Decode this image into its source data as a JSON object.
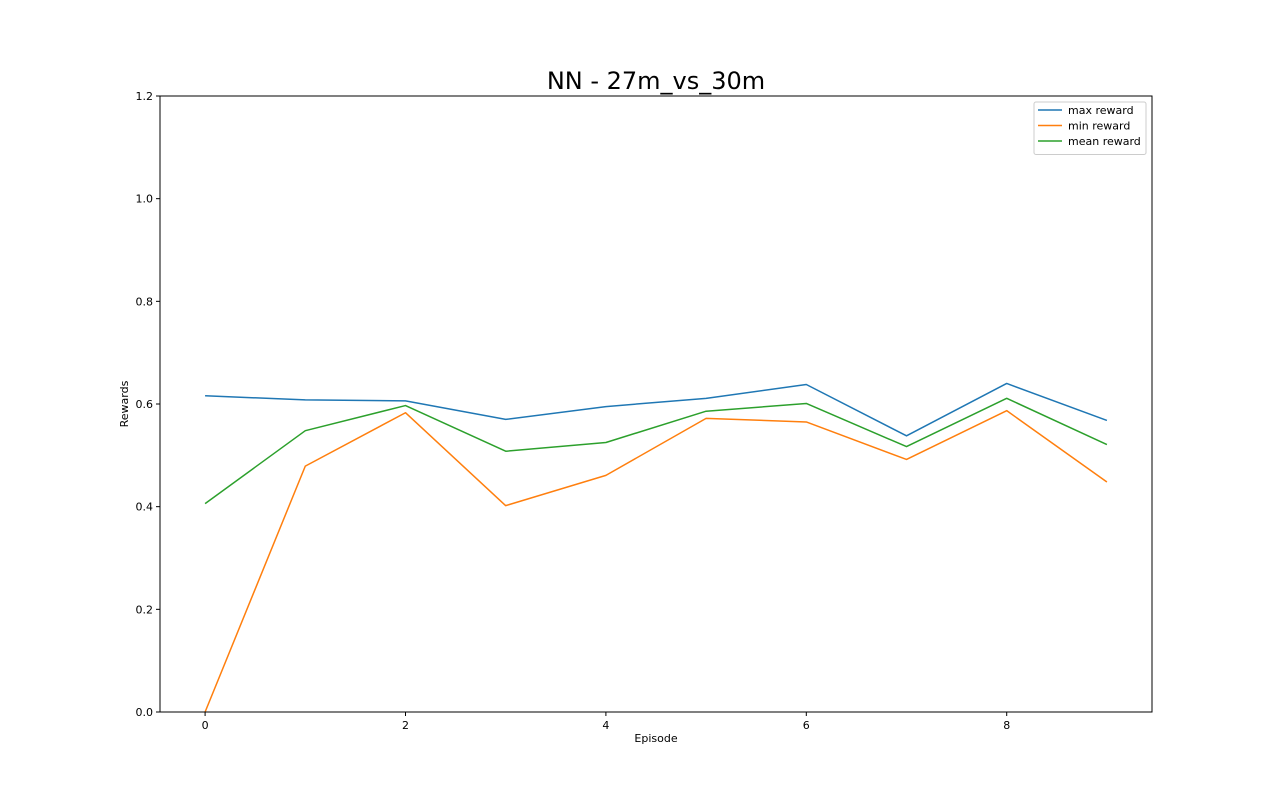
{
  "chart_data": {
    "type": "line",
    "title": "NN - 27m_vs_30m",
    "xlabel": "Episode",
    "ylabel": "Rewards",
    "x": [
      0,
      1,
      2,
      3,
      4,
      5,
      6,
      7,
      8,
      9
    ],
    "xlim": [
      -0.45,
      9.45
    ],
    "ylim": [
      0.0,
      1.2
    ],
    "xticks": [
      0,
      2,
      4,
      6,
      8
    ],
    "yticks": [
      0.0,
      0.2,
      0.4,
      0.6,
      0.8,
      1.0,
      1.2
    ],
    "xtick_labels": [
      "0",
      "2",
      "4",
      "6",
      "8"
    ],
    "ytick_labels": [
      "0.0",
      "0.2",
      "0.4",
      "0.6",
      "0.8",
      "1.0",
      "1.2"
    ],
    "grid": false,
    "legend_position": "top-right",
    "series": [
      {
        "name": "max reward",
        "color": "#1f77b4",
        "values": [
          0.616,
          0.608,
          0.606,
          0.57,
          0.595,
          0.611,
          0.638,
          0.538,
          0.64,
          0.568
        ]
      },
      {
        "name": "min reward",
        "color": "#ff7f0e",
        "values": [
          0.0,
          0.479,
          0.583,
          0.402,
          0.461,
          0.572,
          0.565,
          0.492,
          0.587,
          0.448
        ]
      },
      {
        "name": "mean reward",
        "color": "#2ca02c",
        "values": [
          0.406,
          0.548,
          0.597,
          0.508,
          0.525,
          0.586,
          0.601,
          0.517,
          0.611,
          0.521
        ]
      }
    ]
  }
}
